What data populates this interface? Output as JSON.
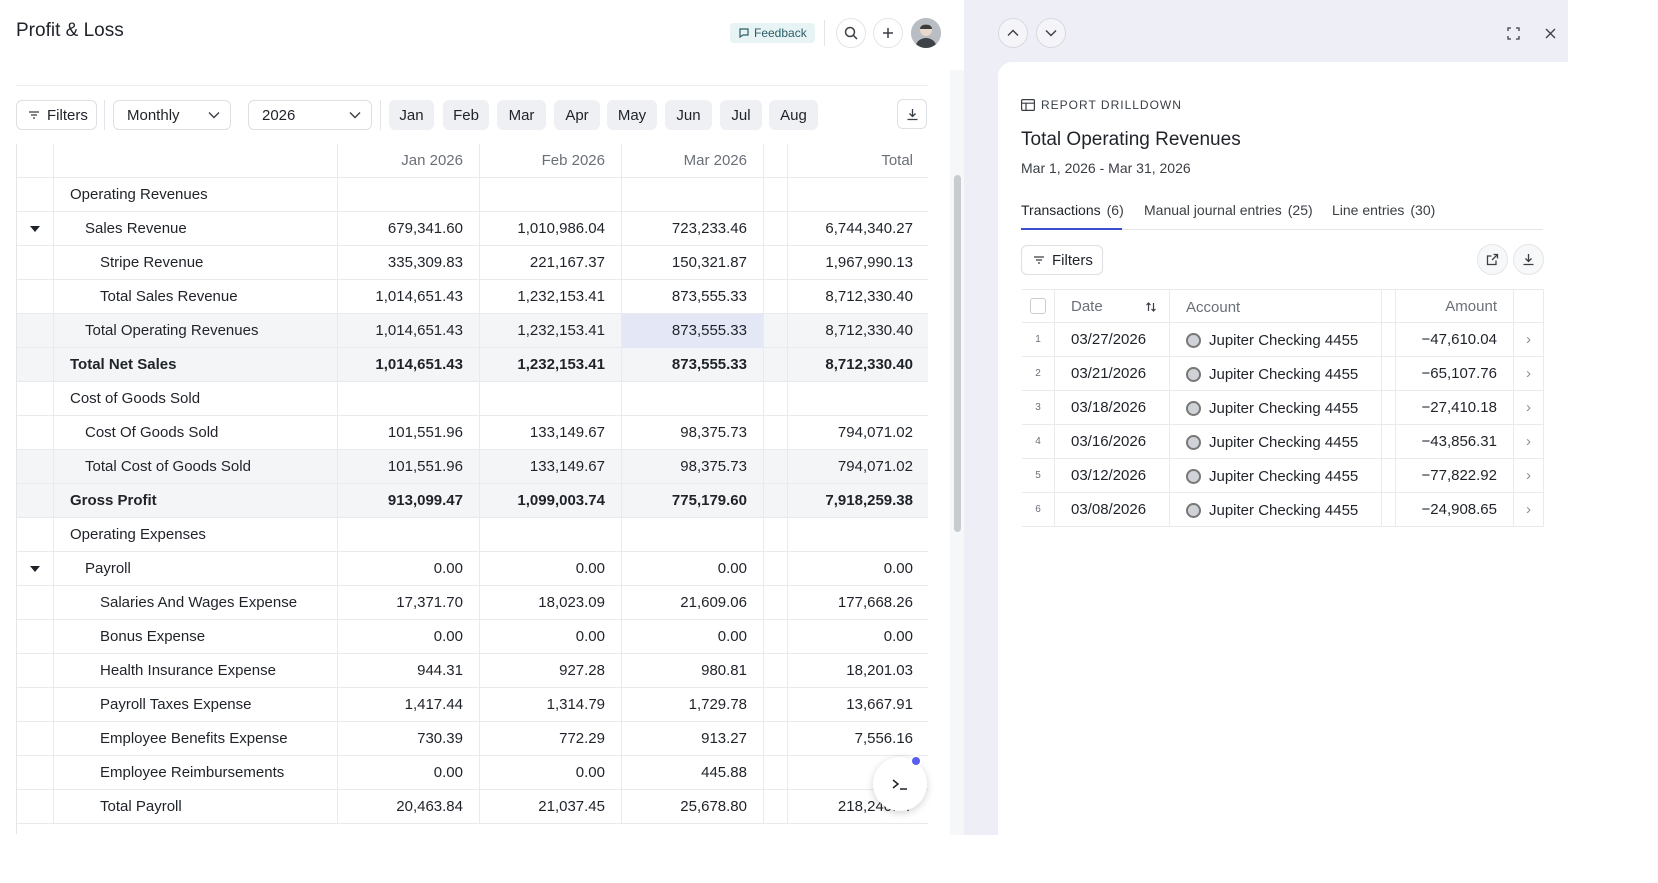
{
  "header": {
    "title": "Profit & Loss",
    "feedback_label": "Feedback"
  },
  "toolbar": {
    "filters_label": "Filters",
    "period": "Monthly",
    "year": "2026",
    "months": [
      "Jan",
      "Feb",
      "Mar",
      "Apr",
      "May",
      "Jun",
      "Jul",
      "Aug"
    ]
  },
  "table": {
    "columns": [
      "Jan 2026",
      "Feb 2026",
      "Mar 2026",
      "Total"
    ],
    "rows": [
      {
        "label": "Operating Revenues",
        "values": [
          "",
          "",
          "",
          ""
        ]
      },
      {
        "label": "Sales Revenue",
        "values": [
          "679,341.60",
          "1,010,986.04",
          "723,233.46",
          "6,744,340.27"
        ]
      },
      {
        "label": "Stripe Revenue",
        "values": [
          "335,309.83",
          "221,167.37",
          "150,321.87",
          "1,967,990.13"
        ]
      },
      {
        "label": "Total Sales Revenue",
        "values": [
          "1,014,651.43",
          "1,232,153.41",
          "873,555.33",
          "8,712,330.40"
        ]
      },
      {
        "label": "Total Operating Revenues",
        "values": [
          "1,014,651.43",
          "1,232,153.41",
          "873,555.33",
          "8,712,330.40"
        ]
      },
      {
        "label": "Total Net Sales",
        "values": [
          "1,014,651.43",
          "1,232,153.41",
          "873,555.33",
          "8,712,330.40"
        ]
      },
      {
        "label": "Cost of Goods Sold",
        "values": [
          "",
          "",
          "",
          ""
        ]
      },
      {
        "label": "Cost Of Goods Sold",
        "values": [
          "101,551.96",
          "133,149.67",
          "98,375.73",
          "794,071.02"
        ]
      },
      {
        "label": "Total Cost of Goods Sold",
        "values": [
          "101,551.96",
          "133,149.67",
          "98,375.73",
          "794,071.02"
        ]
      },
      {
        "label": "Gross Profit",
        "values": [
          "913,099.47",
          "1,099,003.74",
          "775,179.60",
          "7,918,259.38"
        ]
      },
      {
        "label": "Operating Expenses",
        "values": [
          "",
          "",
          "",
          ""
        ]
      },
      {
        "label": "Payroll",
        "values": [
          "0.00",
          "0.00",
          "0.00",
          "0.00"
        ]
      },
      {
        "label": "Salaries And Wages Expense",
        "values": [
          "17,371.70",
          "18,023.09",
          "21,609.06",
          "177,668.26"
        ]
      },
      {
        "label": "Bonus Expense",
        "values": [
          "0.00",
          "0.00",
          "0.00",
          "0.00"
        ]
      },
      {
        "label": "Health Insurance Expense",
        "values": [
          "944.31",
          "927.28",
          "980.81",
          "18,201.03"
        ]
      },
      {
        "label": "Payroll Taxes Expense",
        "values": [
          "1,417.44",
          "1,314.79",
          "1,729.78",
          "13,667.91"
        ]
      },
      {
        "label": "Employee Benefits Expense",
        "values": [
          "730.39",
          "772.29",
          "913.27",
          "7,556.16"
        ]
      },
      {
        "label": "Employee Reimbursements",
        "values": [
          "0.00",
          "0.00",
          "445.88",
          "1,"
        ]
      },
      {
        "label": "Total Payroll",
        "values": [
          "20,463.84",
          "21,037.45",
          "25,678.80",
          "218,240.57"
        ]
      }
    ]
  },
  "drilldown": {
    "section_label": "REPORT DRILLDOWN",
    "title": "Total Operating Revenues",
    "date_range": "Mar 1, 2026 - Mar 31, 2026",
    "tabs": [
      {
        "label": "Transactions",
        "count": "(6)"
      },
      {
        "label": "Manual journal entries",
        "count": "(25)"
      },
      {
        "label": "Line entries",
        "count": "(30)"
      }
    ],
    "filters_label": "Filters",
    "columns": [
      "Date",
      "Account",
      "Amount"
    ],
    "rows": [
      {
        "n": "1",
        "date": "03/27/2026",
        "account": "Jupiter Checking 4455",
        "amount": "−47,610.04"
      },
      {
        "n": "2",
        "date": "03/21/2026",
        "account": "Jupiter Checking 4455",
        "amount": "−65,107.76"
      },
      {
        "n": "3",
        "date": "03/18/2026",
        "account": "Jupiter Checking 4455",
        "amount": "−27,410.18"
      },
      {
        "n": "4",
        "date": "03/16/2026",
        "account": "Jupiter Checking 4455",
        "amount": "−43,856.31"
      },
      {
        "n": "5",
        "date": "03/12/2026",
        "account": "Jupiter Checking 4455",
        "amount": "−77,822.92"
      },
      {
        "n": "6",
        "date": "03/08/2026",
        "account": "Jupiter Checking 4455",
        "amount": "−24,908.65"
      }
    ]
  },
  "colors": {
    "accent": "#3d4fd1",
    "selected_cell": "#e4e7f6",
    "panel_bg": "#eeeef6",
    "notification_dot": "#5b5ff0"
  },
  "icons": [
    "comment-icon",
    "search-icon",
    "plus-icon",
    "avatar",
    "filter-icon",
    "chevron-down-icon",
    "download-icon",
    "caret-down-icon",
    "chevron-up-icon",
    "expand-icon",
    "close-icon",
    "table-icon",
    "external-link-icon",
    "sort-icon",
    "chevron-right-icon",
    "terminal-icon"
  ]
}
